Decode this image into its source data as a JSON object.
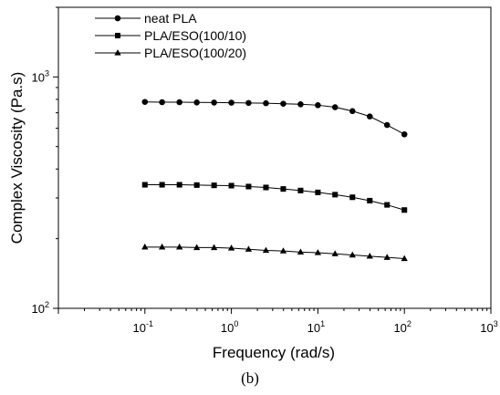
{
  "caption": "(b)",
  "chart_data": {
    "type": "line",
    "xlabel": "Frequency (rad/s)",
    "ylabel": "Complex Viscosity (Pa.s)",
    "xscale": "log",
    "yscale": "log",
    "xlim": [
      0.01,
      1000
    ],
    "ylim": [
      100,
      2000
    ],
    "xticks": [
      {
        "base": "10",
        "exp": "-1",
        "value": 0.1
      },
      {
        "base": "10",
        "exp": "0",
        "value": 1
      },
      {
        "base": "10",
        "exp": "1",
        "value": 10
      },
      {
        "base": "10",
        "exp": "2",
        "value": 100
      },
      {
        "base": "10",
        "exp": "3",
        "value": 1000
      }
    ],
    "yticks": [
      {
        "base": "10",
        "exp": "2",
        "value": 100
      },
      {
        "base": "10",
        "exp": "3",
        "value": 1000
      }
    ],
    "grid": false,
    "legend_position": "top-left",
    "x": [
      0.1,
      0.158,
      0.251,
      0.398,
      0.631,
      1.0,
      1.58,
      2.51,
      3.98,
      6.31,
      10.0,
      15.8,
      25.1,
      39.8,
      63.1,
      100
    ],
    "series": [
      {
        "name": "neat PLA",
        "marker": "circle",
        "values": [
          780,
          778,
          778,
          776,
          775,
          774,
          772,
          770,
          766,
          762,
          755,
          740,
          712,
          675,
          620,
          565
        ]
      },
      {
        "name": "PLA/ESO(100/10)",
        "marker": "square",
        "values": [
          342,
          342,
          342,
          341,
          340,
          339,
          336,
          333,
          328,
          323,
          317,
          310,
          302,
          292,
          280,
          266
        ]
      },
      {
        "name": "PLA/ESO(100/20)",
        "marker": "triangle",
        "values": [
          184,
          184,
          184,
          183,
          183,
          182,
          180,
          178,
          177,
          175,
          174,
          172,
          170,
          168,
          166,
          164
        ]
      }
    ]
  }
}
